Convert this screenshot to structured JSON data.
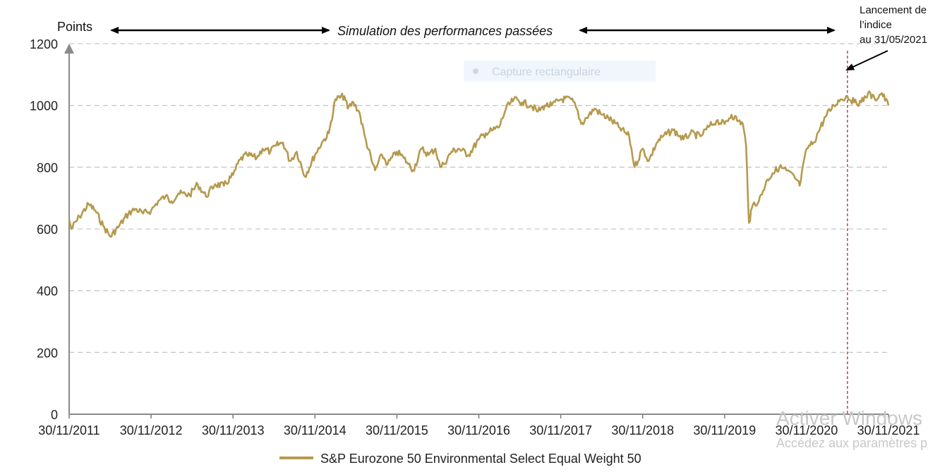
{
  "chart_data": {
    "type": "line",
    "title": "",
    "ylabel": "Points",
    "xlabel": "",
    "ylim": [
      0,
      1200
    ],
    "yticks": [
      0,
      200,
      400,
      600,
      800,
      1000,
      1200
    ],
    "xlim": [
      "2011-11-30",
      "2021-11-30"
    ],
    "xtick_labels": [
      "30/11/2011",
      "30/11/2012",
      "30/11/2013",
      "30/11/2014",
      "30/11/2015",
      "30/11/2016",
      "30/11/2017",
      "30/11/2018",
      "30/11/2019",
      "30/11/2020",
      "30/11/2021"
    ],
    "grid": "horizontal dashed",
    "legend_position": "bottom-center",
    "series": [
      {
        "name": "S&P Eurozone 50 Environmental Select Equal Weight 50",
        "color": "#b59a4e",
        "x": [
          "2011-11-30",
          "2011-12-10",
          "2012-01-15",
          "2012-02-25",
          "2012-03-25",
          "2012-04-30",
          "2012-06-01",
          "2012-07-10",
          "2012-08-20",
          "2012-09-20",
          "2012-10-25",
          "2012-11-30",
          "2012-12-31",
          "2013-02-01",
          "2013-02-28",
          "2013-03-31",
          "2013-05-20",
          "2013-06-25",
          "2013-08-01",
          "2013-09-10",
          "2013-10-20",
          "2013-11-30",
          "2013-12-31",
          "2014-01-31",
          "2014-03-15",
          "2014-04-10",
          "2014-05-15",
          "2014-06-10",
          "2014-07-10",
          "2014-08-10",
          "2014-09-10",
          "2014-10-16",
          "2014-11-30",
          "2014-12-31",
          "2015-01-31",
          "2015-03-01",
          "2015-04-10",
          "2015-04-25",
          "2015-05-20",
          "2015-06-15",
          "2015-07-10",
          "2015-08-10",
          "2015-08-25",
          "2015-09-25",
          "2015-10-20",
          "2015-11-30",
          "2015-12-31",
          "2016-01-20",
          "2016-02-11",
          "2016-03-20",
          "2016-04-20",
          "2016-05-20",
          "2016-06-10",
          "2016-06-27",
          "2016-07-30",
          "2016-09-01",
          "2016-10-15",
          "2016-11-30",
          "2016-12-31",
          "2017-01-31",
          "2017-02-28",
          "2017-03-31",
          "2017-05-05",
          "2017-06-10",
          "2017-07-20",
          "2017-08-20",
          "2017-09-20",
          "2017-10-20",
          "2017-11-30",
          "2018-01-15",
          "2018-02-09",
          "2018-03-01",
          "2018-03-25",
          "2018-04-30",
          "2018-05-31",
          "2018-06-30",
          "2018-08-15",
          "2018-10-01",
          "2018-10-25",
          "2018-11-30",
          "2018-12-27",
          "2019-02-01",
          "2019-03-01",
          "2019-04-15",
          "2019-05-31",
          "2019-07-01",
          "2019-08-15",
          "2019-09-20",
          "2019-10-25",
          "2019-11-30",
          "2019-12-31",
          "2020-01-31",
          "2020-02-20",
          "2020-03-05",
          "2020-03-18",
          "2020-04-05",
          "2020-05-01",
          "2020-06-08",
          "2020-07-01",
          "2020-08-01",
          "2020-09-01",
          "2020-10-15",
          "2020-10-30",
          "2020-11-30",
          "2020-12-31",
          "2021-01-31",
          "2021-02-28",
          "2021-03-31",
          "2021-04-30",
          "2021-05-31",
          "2021-06-30",
          "2021-07-31",
          "2021-08-31",
          "2021-09-30",
          "2021-10-31",
          "2021-11-30"
        ],
        "values": [
          630,
          600,
          640,
          680,
          660,
          610,
          575,
          610,
          650,
          665,
          650,
          660,
          690,
          705,
          690,
          715,
          710,
          745,
          705,
          745,
          740,
          775,
          825,
          840,
          830,
          860,
          850,
          870,
          880,
          820,
          850,
          770,
          840,
          880,
          910,
          1020,
          1030,
          990,
          1010,
          980,
          900,
          820,
          790,
          840,
          810,
          850,
          830,
          810,
          790,
          860,
          840,
          860,
          800,
          810,
          850,
          860,
          840,
          890,
          910,
          920,
          930,
          990,
          1020,
          1010,
          1000,
          980,
          1000,
          1000,
          1020,
          1020,
          990,
          940,
          960,
          990,
          970,
          960,
          930,
          900,
          800,
          860,
          820,
          880,
          900,
          920,
          890,
          910,
          900,
          930,
          950,
          940,
          970,
          950,
          940,
          870,
          620,
          680,
          690,
          760,
          780,
          800,
          790,
          760,
          740,
          860,
          880,
          930,
          970,
          1000,
          1020,
          1030,
          1010,
          1010,
          1040,
          1020,
          1040,
          1000
        ]
      }
    ],
    "annotations": {
      "simulation_label": "Simulation des performances passées",
      "launch_label_lines": [
        "Lancement de",
        "l’indice",
        "au 31/05/2021"
      ],
      "launch_date": "2021-05-31",
      "launch_line_color": "#d9383a"
    }
  },
  "overlay": {
    "capture_label": "Capture rectangulaire"
  },
  "watermark": {
    "line1": "Activer Windows",
    "line2": "Accédez aux paramètres p"
  }
}
